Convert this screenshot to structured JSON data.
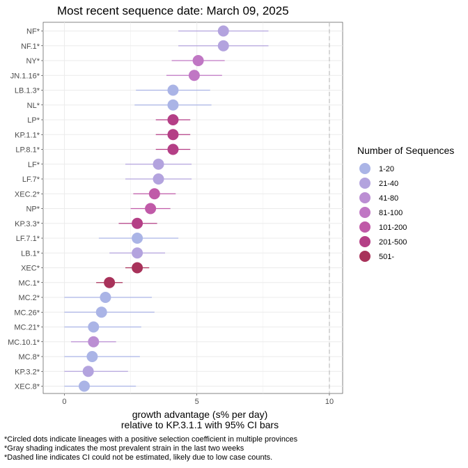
{
  "chart_data": {
    "type": "scatter",
    "title": "Most recent sequence date: March 09, 2025",
    "xlabel_line1": "growth advantage (s% per day)",
    "xlabel_line2": "relative to  KP.3.1.1  with 95% CI bars",
    "xlim": [
      -0.8,
      10.5
    ],
    "xticks": [
      0,
      5,
      10
    ],
    "dashed_line_x": 10,
    "grid": true,
    "legend_title": "Number of Sequences",
    "legend_placement": "right",
    "legend": [
      {
        "label": "1-20",
        "color": "#aab4e6"
      },
      {
        "label": "21-40",
        "color": "#b3a3de"
      },
      {
        "label": "41-80",
        "color": "#bb8ed3"
      },
      {
        "label": "81-100",
        "color": "#c077c4"
      },
      {
        "label": "101-200",
        "color": "#c05aa8"
      },
      {
        "label": "201-500",
        "color": "#b43f86"
      },
      {
        "label": "501-",
        "color": "#a8325a"
      }
    ],
    "points": [
      {
        "lineage": "NF*",
        "value": 6.0,
        "lo": 4.3,
        "hi": 7.7,
        "group": 1
      },
      {
        "lineage": "NF.1*",
        "value": 6.0,
        "lo": 4.3,
        "hi": 7.7,
        "group": 1
      },
      {
        "lineage": "NY*",
        "value": 5.05,
        "lo": 4.05,
        "hi": 6.05,
        "group": 3
      },
      {
        "lineage": "JN.1.16*",
        "value": 4.9,
        "lo": 3.85,
        "hi": 5.95,
        "group": 3
      },
      {
        "lineage": "LB.1.3*",
        "value": 4.1,
        "lo": 2.7,
        "hi": 5.5,
        "group": 0
      },
      {
        "lineage": "NL*",
        "value": 4.1,
        "lo": 2.65,
        "hi": 5.55,
        "group": 0
      },
      {
        "lineage": "LP*",
        "value": 4.1,
        "lo": 3.45,
        "hi": 4.75,
        "group": 5
      },
      {
        "lineage": "KP.1.1*",
        "value": 4.1,
        "lo": 3.45,
        "hi": 4.75,
        "group": 5
      },
      {
        "lineage": "LP.8.1*",
        "value": 4.1,
        "lo": 3.45,
        "hi": 4.75,
        "group": 5
      },
      {
        "lineage": "LF*",
        "value": 3.55,
        "lo": 2.3,
        "hi": 4.8,
        "group": 1
      },
      {
        "lineage": "LF.7*",
        "value": 3.55,
        "lo": 2.3,
        "hi": 4.8,
        "group": 1
      },
      {
        "lineage": "XEC.2*",
        "value": 3.4,
        "lo": 2.6,
        "hi": 4.2,
        "group": 4
      },
      {
        "lineage": "NP*",
        "value": 3.25,
        "lo": 2.5,
        "hi": 4.0,
        "group": 4
      },
      {
        "lineage": "KP.3.3*",
        "value": 2.75,
        "lo": 2.05,
        "hi": 3.5,
        "group": 5
      },
      {
        "lineage": "LF.7.1*",
        "value": 2.75,
        "lo": 1.3,
        "hi": 4.3,
        "group": 0
      },
      {
        "lineage": "LB.1*",
        "value": 2.75,
        "lo": 1.7,
        "hi": 3.8,
        "group": 1
      },
      {
        "lineage": "XEC*",
        "value": 2.75,
        "lo": 2.3,
        "hi": 3.2,
        "group": 6
      },
      {
        "lineage": "MC.1*",
        "value": 1.7,
        "lo": 1.2,
        "hi": 2.2,
        "group": 6
      },
      {
        "lineage": "MC.2*",
        "value": 1.55,
        "lo": 0.0,
        "hi": 3.3,
        "group": 0
      },
      {
        "lineage": "MC.26*",
        "value": 1.4,
        "lo": 0.0,
        "hi": 3.4,
        "group": 0
      },
      {
        "lineage": "MC.21*",
        "value": 1.1,
        "lo": 0.0,
        "hi": 2.9,
        "group": 0
      },
      {
        "lineage": "MC.10.1*",
        "value": 1.1,
        "lo": 0.25,
        "hi": 1.95,
        "group": 2
      },
      {
        "lineage": "MC.8*",
        "value": 1.05,
        "lo": 0.0,
        "hi": 2.85,
        "group": 0
      },
      {
        "lineage": "KP.3.2*",
        "value": 0.9,
        "lo": 0.0,
        "hi": 2.4,
        "group": 1
      },
      {
        "lineage": "XEC.8*",
        "value": 0.75,
        "lo": 0.0,
        "hi": 2.7,
        "group": 0
      }
    ]
  },
  "footnotes": [
    "*Circled dots indicate lineages with a positive selection coefficient in multiple provinces",
    "*Gray shading indicates the most prevalent strain in the last two weeks",
    "*Dashed line indicates CI could not be estimated, likely due to low case counts."
  ]
}
